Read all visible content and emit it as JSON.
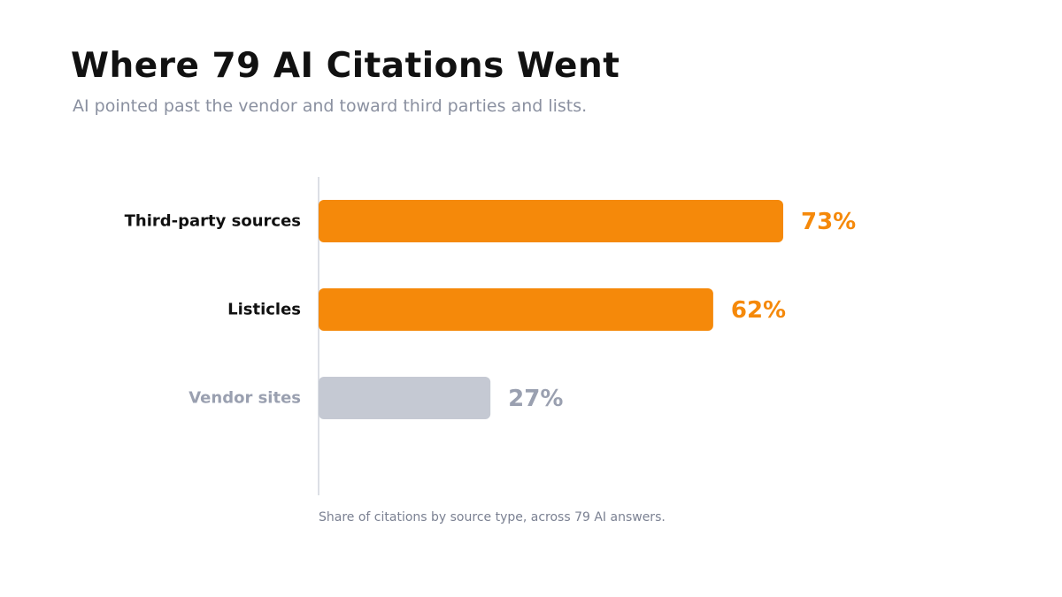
{
  "header": {
    "title": "Where 79 AI Citations Went",
    "subtitle": "AI pointed past the vendor and toward third parties and lists."
  },
  "caption": "Share of citations by source type, across 79 AI answers.",
  "colors": {
    "highlight": "#f5890a",
    "muted_bar": "#c5c9d3",
    "muted_text": "#9aa0b0",
    "label_dark": "#111111",
    "axis": "#dcdfe5"
  },
  "chart_data": {
    "type": "bar",
    "orientation": "horizontal",
    "categories": [
      "Third-party sources",
      "Listicles",
      "Vendor sites"
    ],
    "values": [
      73,
      62,
      27
    ],
    "value_labels": [
      "73%",
      "62%",
      "27%"
    ],
    "highlighted": [
      true,
      true,
      false
    ],
    "unit": "%",
    "xlim": [
      0,
      100
    ],
    "grid": false,
    "legend": "none"
  }
}
